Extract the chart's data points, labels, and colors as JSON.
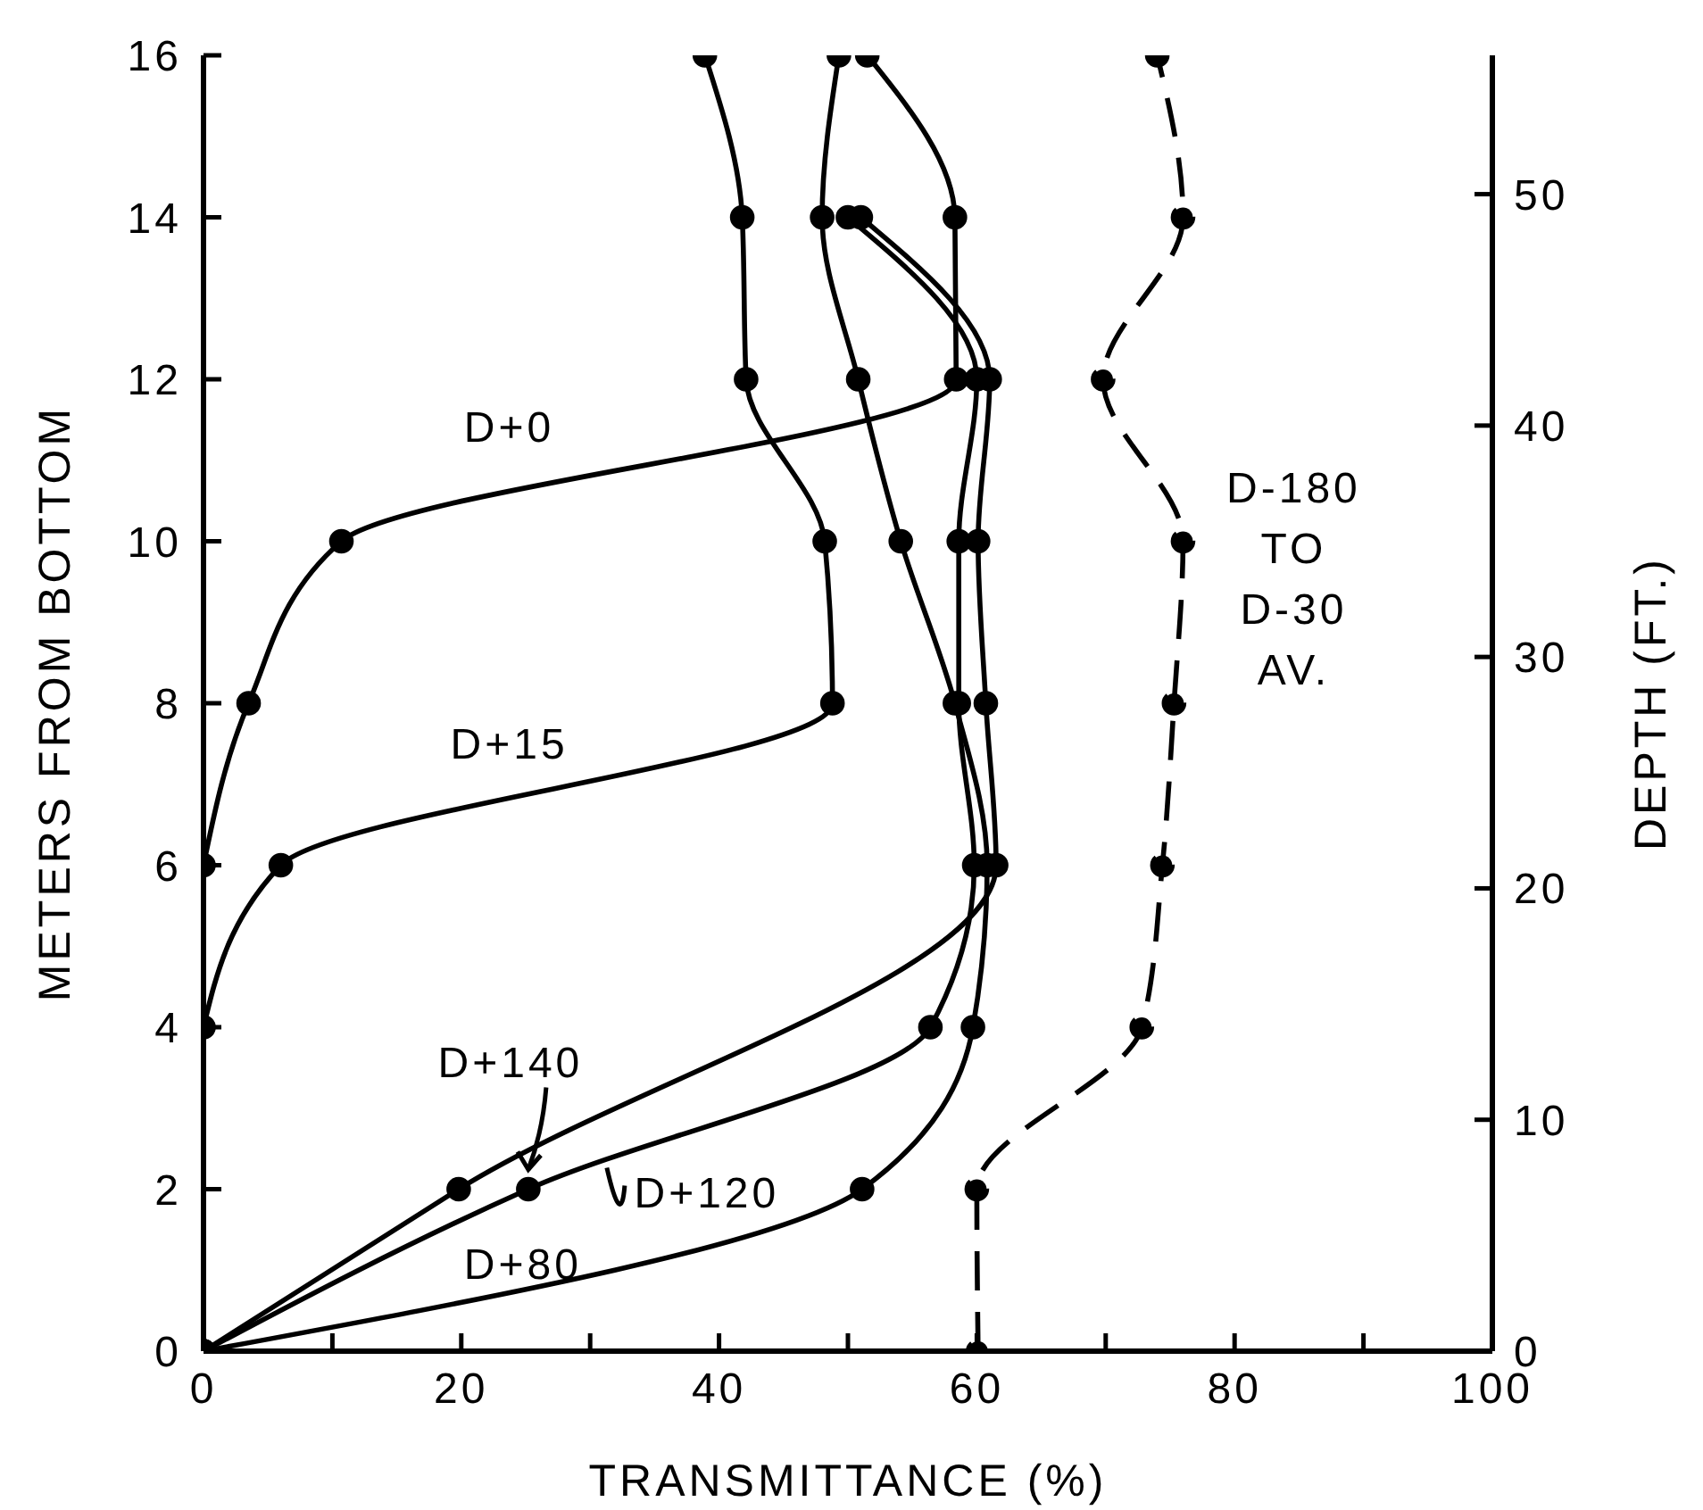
{
  "chart_data": {
    "type": "line",
    "xlabel": "TRANSMITTANCE (%)",
    "ylabel": "METERS FROM BOTTOM",
    "y2label": "DEPTH (FT.)",
    "xlim": [
      0,
      100
    ],
    "xticks": [
      0,
      {
        "value": 10,
        "label": null
      },
      20,
      {
        "value": 30,
        "label": null
      },
      40,
      {
        "value": 50,
        "label": null
      },
      60,
      {
        "value": 70,
        "label": null
      },
      80,
      {
        "value": 90,
        "label": null
      },
      100
    ],
    "ylim": [
      0,
      16
    ],
    "yticks": [
      0,
      2,
      4,
      6,
      8,
      10,
      12,
      14,
      16
    ],
    "y2lim": [
      0,
      56
    ],
    "y2ticks": [
      0,
      10,
      20,
      30,
      40,
      50
    ],
    "marker": "circle",
    "series": [
      {
        "name": "D+0",
        "color": "#000000",
        "x": [
          0,
          3.5,
          10.7,
          58.4,
          58.3,
          51.5
        ],
        "values": [
          6,
          8,
          10,
          12,
          14,
          16
        ]
      },
      {
        "name": "D+15",
        "color": "#000000",
        "x": [
          0,
          6,
          48.8,
          48.2,
          42.1,
          41.8,
          38.9
        ],
        "values": [
          4,
          6,
          8,
          10,
          12,
          14,
          16
        ]
      },
      {
        "name": "D+80",
        "color": "#000000",
        "x": [
          0,
          51.1,
          59.7,
          60.8,
          58.3,
          54.1,
          50.8,
          48,
          49.3
        ],
        "values": [
          0,
          2,
          4,
          6,
          8,
          10,
          12,
          14,
          16
        ]
      },
      {
        "name": "D+120",
        "color": "#000000",
        "x": [
          0,
          25.2,
          56.4,
          59.8,
          58.6,
          58.6,
          60,
          50
        ],
        "values": [
          0,
          2,
          4,
          6,
          8,
          10,
          12,
          14
        ]
      },
      {
        "name": "D+140",
        "color": "#000000",
        "x": [
          0,
          19.8,
          61.5,
          60.7,
          60.1,
          61,
          51
        ],
        "values": [
          0,
          2,
          6,
          8,
          10,
          12,
          14
        ]
      },
      {
        "name": "D-180 TO D-30 AV.",
        "color": "#000000",
        "line_style": "dashed",
        "x": [
          60.1,
          60,
          72.8,
          74.4,
          75.3,
          76,
          69.8,
          76,
          74
        ],
        "values": [
          0,
          2,
          4,
          6,
          8,
          10,
          12,
          14,
          16
        ]
      }
    ]
  }
}
